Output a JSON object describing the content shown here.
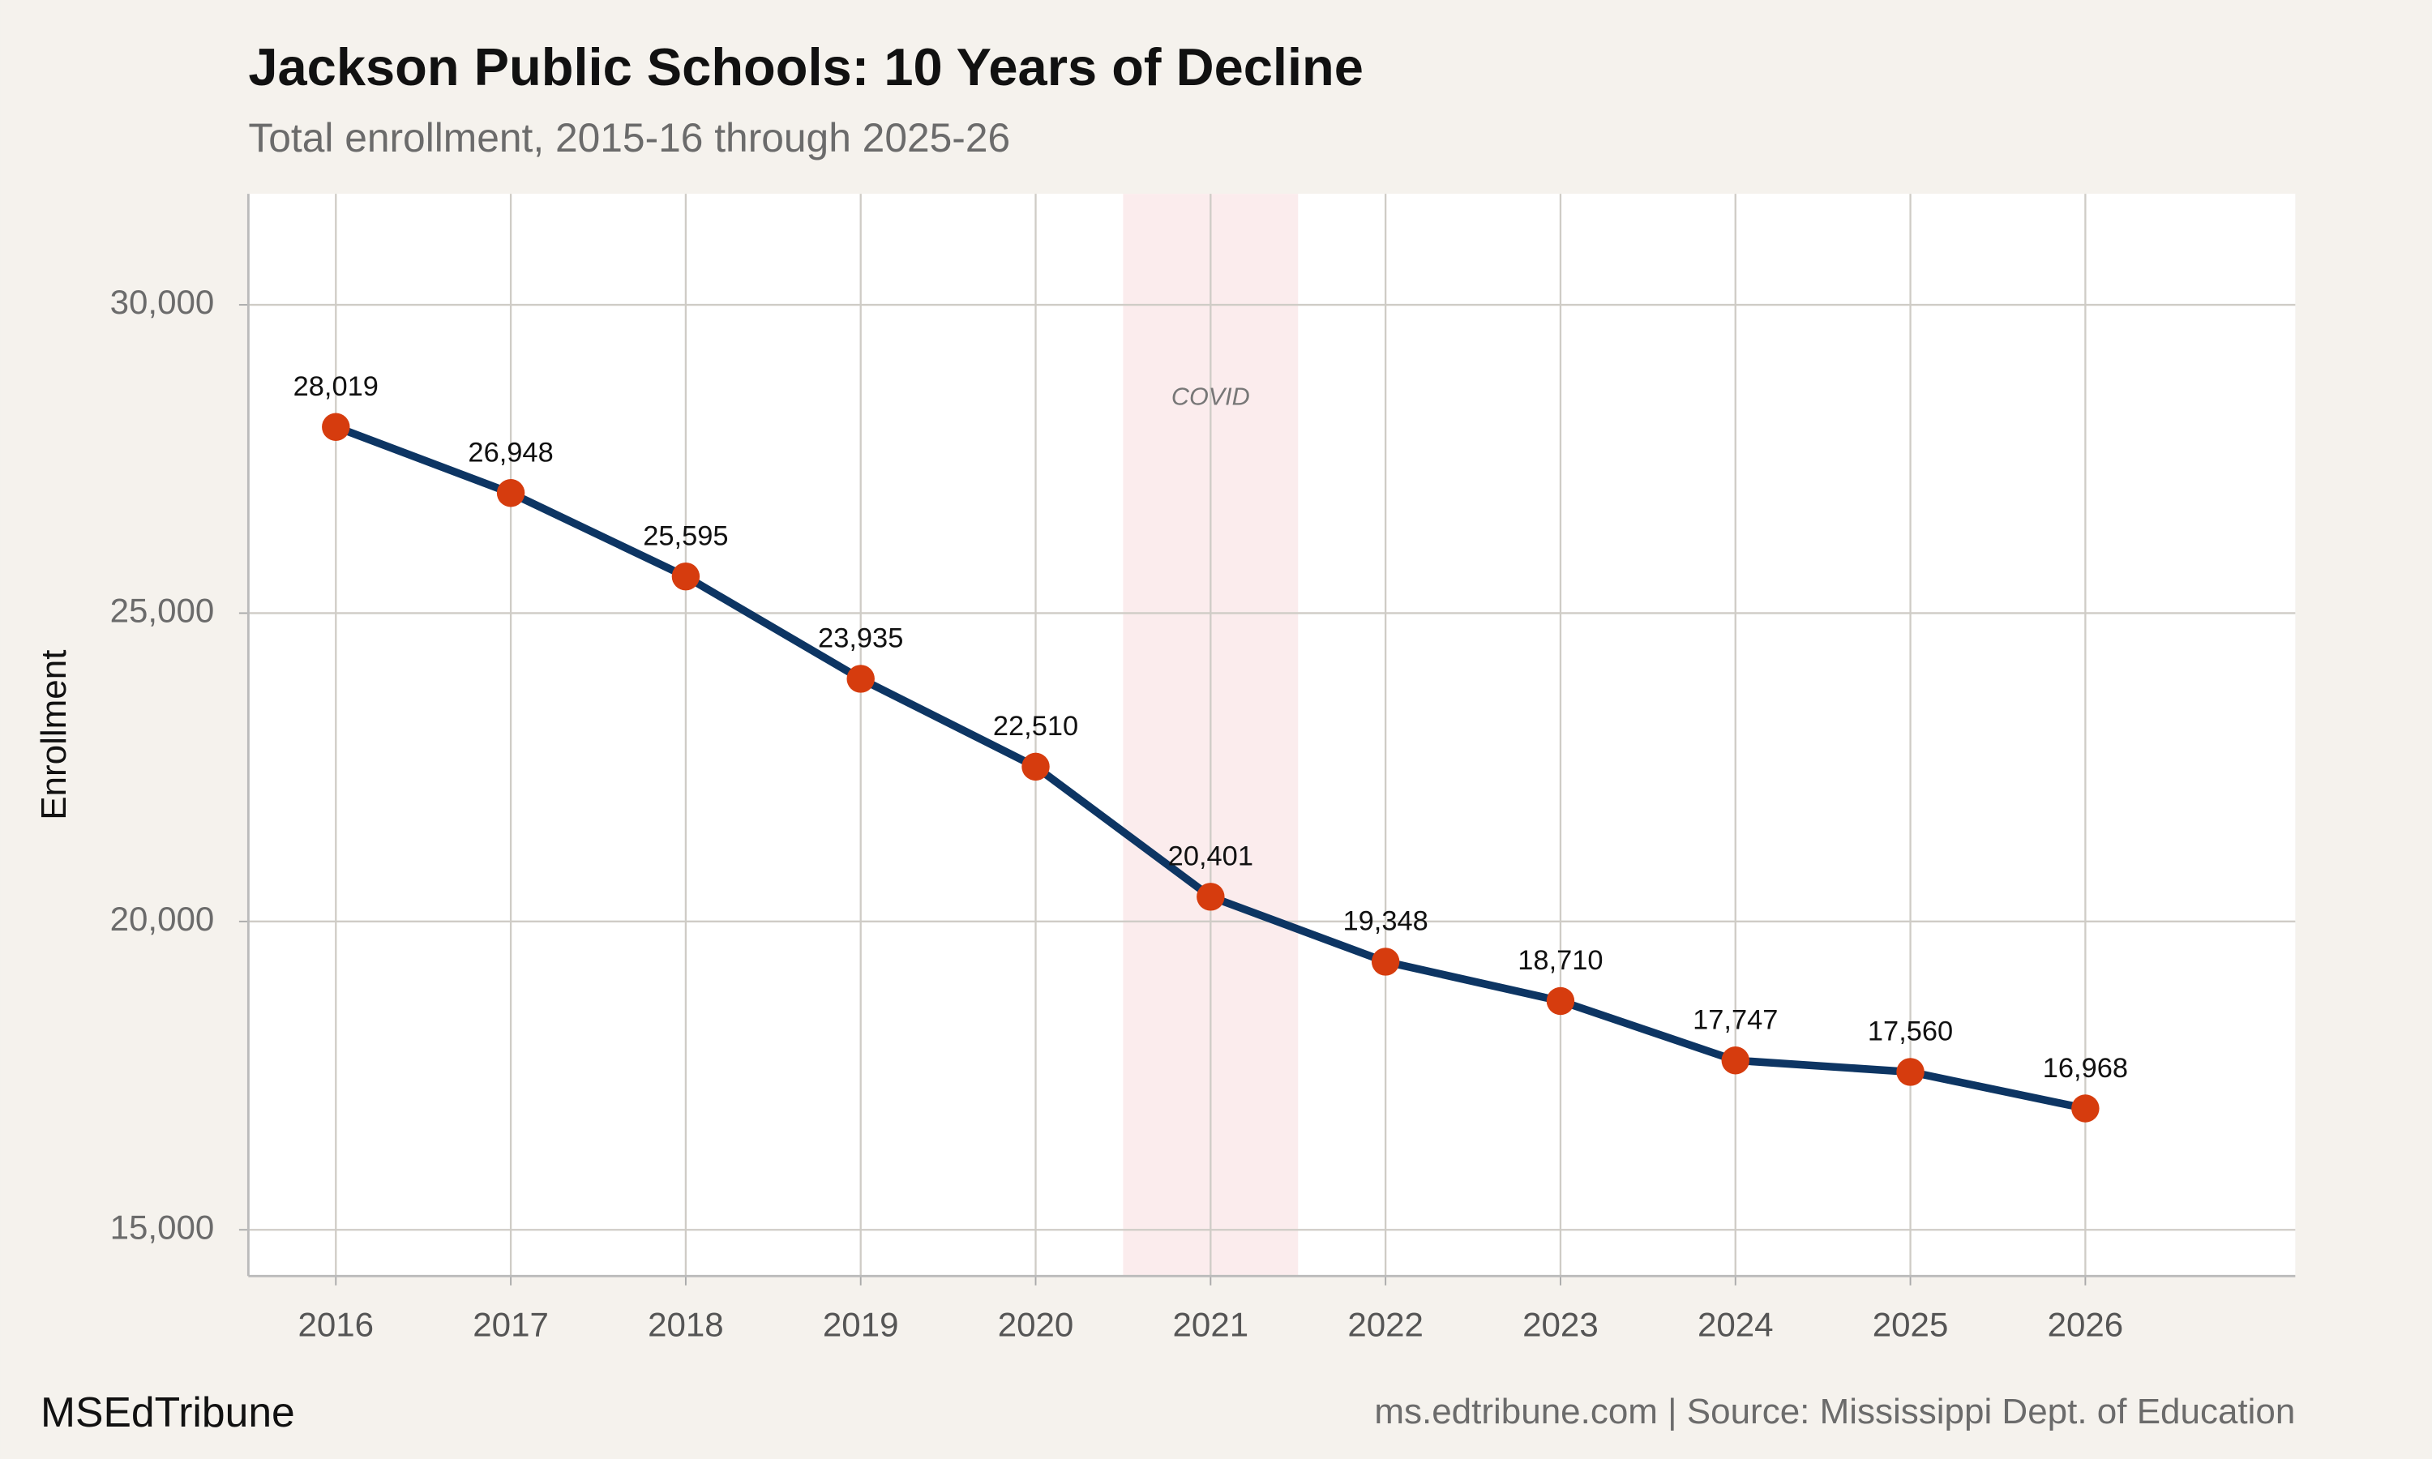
{
  "chart_data": {
    "type": "line",
    "title": "Jackson Public Schools: 10 Years of Decline",
    "subtitle": "Total enrollment, 2015-16 through 2025-26",
    "y_label": "Enrollment",
    "x": [
      2016,
      2017,
      2018,
      2019,
      2020,
      2021,
      2022,
      2023,
      2024,
      2025,
      2026
    ],
    "values": [
      28019,
      26948,
      25595,
      23935,
      22510,
      20401,
      19348,
      18710,
      17747,
      17560,
      16968
    ],
    "value_labels": [
      "28,019",
      "26,948",
      "25,595",
      "23,935",
      "22,510",
      "20,401",
      "19,348",
      "18,710",
      "17,747",
      "17,560",
      "16,968"
    ],
    "line_color": "#0d3563",
    "marker_color": "#d63c0e",
    "xlim": [
      2015.5,
      2027.2
    ],
    "xticks": [
      2016,
      2017,
      2018,
      2019,
      2020,
      2021,
      2022,
      2023,
      2024,
      2025,
      2026
    ],
    "ylim": [
      14250,
      31800
    ],
    "yticks": [
      {
        "value": 15000,
        "label": "15,000"
      },
      {
        "value": 20000,
        "label": "20,000"
      },
      {
        "value": 25000,
        "label": "25,000"
      },
      {
        "value": 30000,
        "label": "30,000"
      }
    ],
    "grid": true,
    "shaded_span": {
      "x": [
        2020.5,
        2021.5
      ],
      "label": "COVID",
      "color": "#fbeced"
    },
    "brand": "MSEdTribune",
    "source": "ms.edtribune.com | Source: Mississippi Dept. of Education"
  }
}
